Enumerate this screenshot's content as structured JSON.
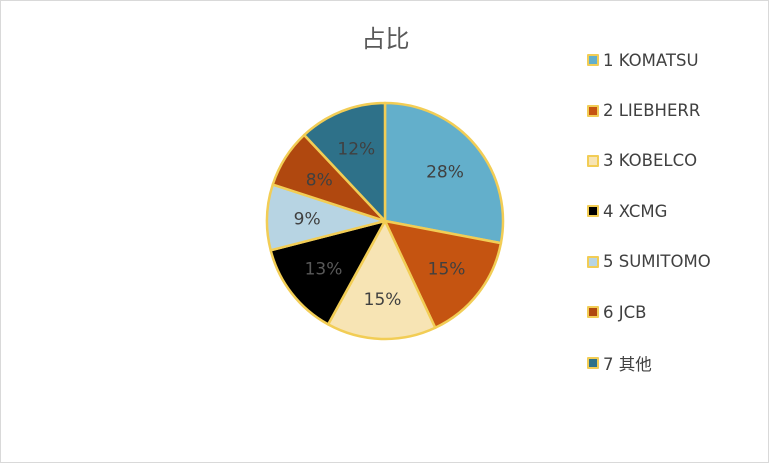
{
  "chart_data": {
    "type": "pie",
    "title": "占比",
    "categories": [
      "1 KOMATSU",
      "2 LIEBHERR",
      "3 KOBELCO",
      "4 XCMG",
      "5 SUMITOMO",
      "6 JCB",
      "7 其他"
    ],
    "values": [
      28,
      15,
      15,
      13,
      9,
      8,
      12
    ],
    "labels": [
      "28%",
      "15%",
      "15%",
      "13%",
      "9%",
      "8%",
      "12%"
    ],
    "colors": [
      "#63afcb",
      "#c55411",
      "#f7e4b4",
      "#000000",
      "#b7d4e3",
      "#b0480f",
      "#2e7189"
    ],
    "label_colors": [
      "#404040",
      "#404040",
      "#404040",
      "#595959",
      "#404040",
      "#404040",
      "#404040"
    ],
    "border_color": "#f2cd55",
    "legend_position": "right"
  }
}
